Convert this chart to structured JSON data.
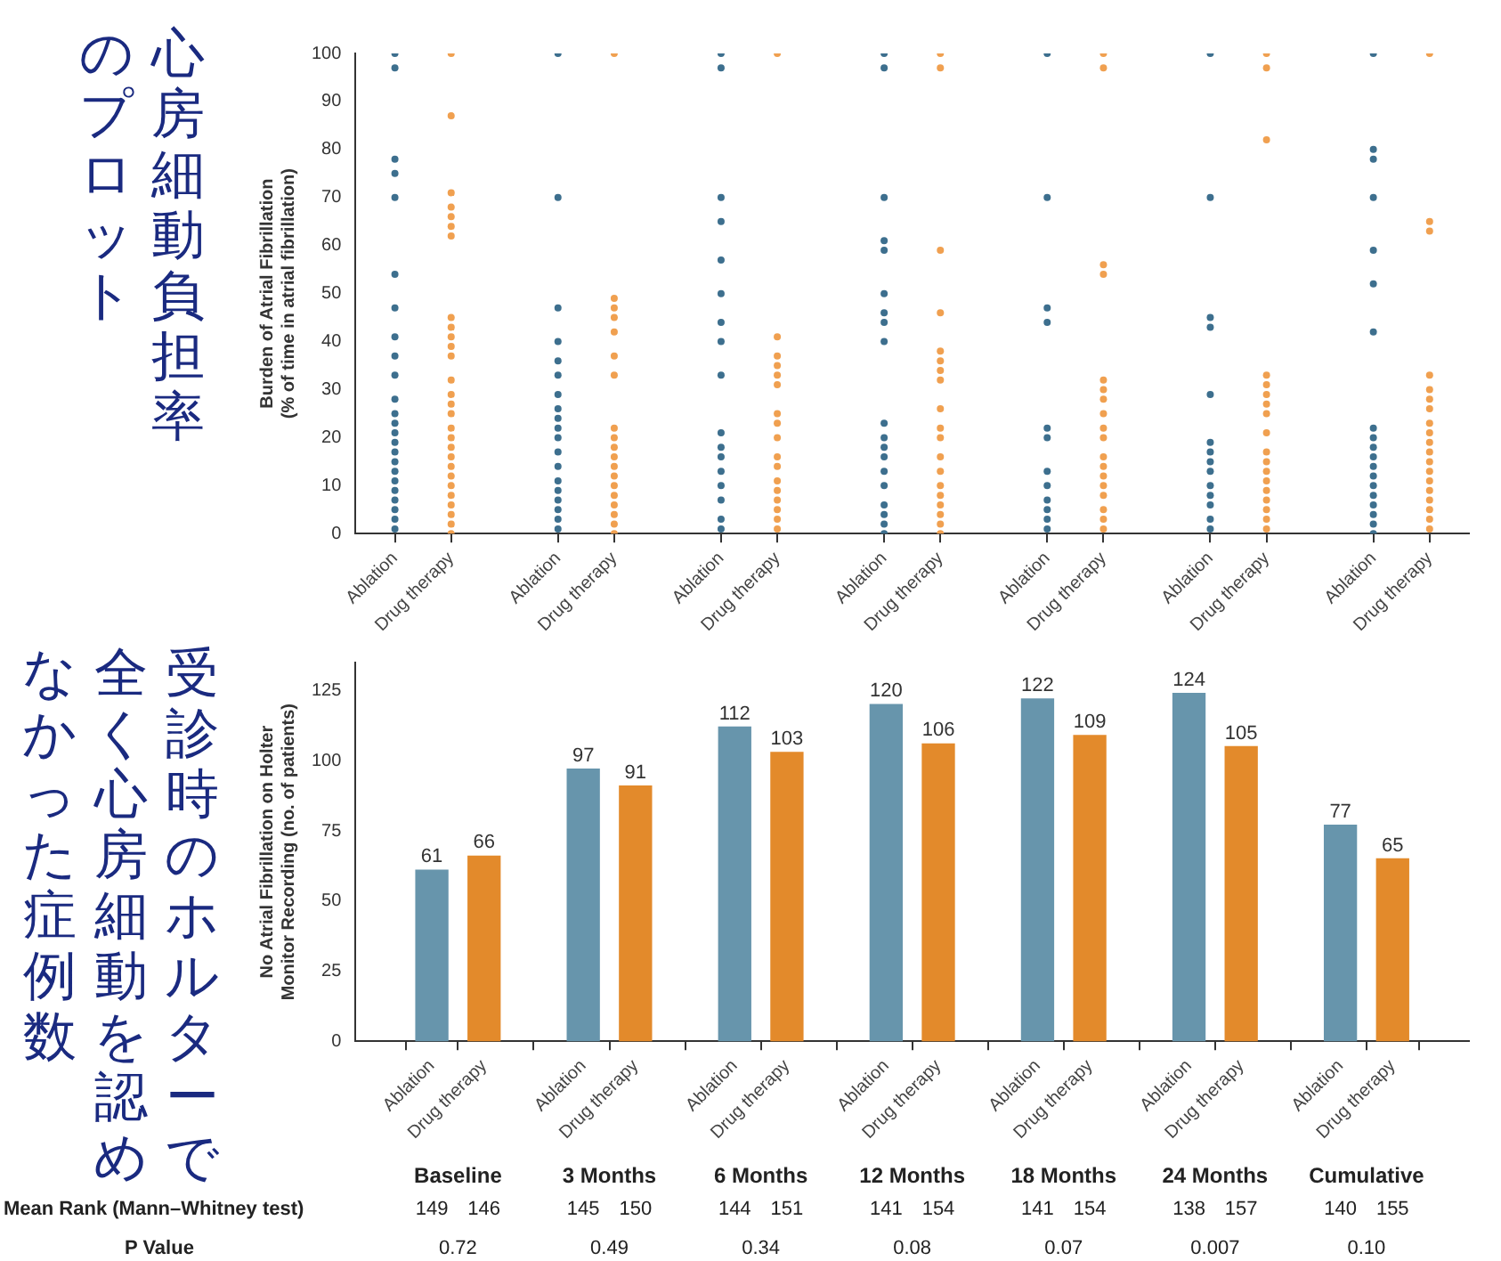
{
  "chart_data": [
    {
      "type": "scatter",
      "ylabel": "Burden of Atrial Fibrillation\n(% of time in atrial fibrillation)",
      "categories": [
        "Ablation",
        "Drug therapy",
        "Ablation",
        "Drug therapy",
        "Ablation",
        "Drug therapy",
        "Ablation",
        "Drug therapy",
        "Ablation",
        "Drug therapy",
        "Ablation",
        "Drug therapy",
        "Ablation",
        "Drug therapy"
      ],
      "series": [
        {
          "colors": [
            "#3d6f8e",
            "#f0a050",
            "#3d6f8e",
            "#f0a050",
            "#3d6f8e",
            "#f0a050",
            "#3d6f8e",
            "#f0a050",
            "#3d6f8e",
            "#f0a050",
            "#3d6f8e",
            "#f0a050",
            "#3d6f8e",
            "#f0a050"
          ],
          "values": [
            100,
            100,
            100,
            100,
            100,
            100,
            100,
            100,
            100,
            100,
            100,
            100,
            100,
            100
          ]
        },
        {
          "colors": [
            "#3d6f8e",
            "#f0a050",
            "#3d6f8e",
            "#f0a050",
            "#3d6f8e",
            "#f0a050",
            "#3d6f8e",
            "#f0a050",
            "#3d6f8e",
            "#f0a050",
            "#3d6f8e",
            "#f0a050",
            "#3d6f8e",
            "#f0a050"
          ],
          "values": [
            97,
            87,
            70,
            49,
            97,
            41,
            97,
            97,
            70,
            97,
            70,
            97,
            80,
            65
          ]
        },
        {
          "colors": [
            "#3d6f8e",
            "#f0a050",
            "#3d6f8e",
            "#f0a050",
            "#3d6f8e",
            "#f0a050",
            "#3d6f8e",
            "#f0a050",
            "#3d6f8e",
            "#f0a050",
            "#3d6f8e",
            "#f0a050",
            "#3d6f8e",
            "#f0a050"
          ],
          "values": [
            78,
            71,
            47,
            47,
            70,
            37,
            70,
            59,
            47,
            56,
            45,
            82,
            78,
            63
          ]
        },
        {
          "colors": [
            "#3d6f8e",
            "#f0a050",
            "#3d6f8e",
            "#f0a050",
            "#3d6f8e",
            "#f0a050",
            "#3d6f8e",
            "#f0a050",
            "#3d6f8e",
            "#f0a050",
            "#3d6f8e",
            "#f0a050",
            "#3d6f8e",
            "#f0a050"
          ],
          "values": [
            75,
            68,
            40,
            45,
            65,
            35,
            61,
            46,
            44,
            54,
            43,
            33,
            70,
            33
          ]
        },
        {
          "colors": [
            "#3d6f8e",
            "#f0a050",
            "#3d6f8e",
            "#f0a050",
            "#3d6f8e",
            "#f0a050",
            "#3d6f8e",
            "#f0a050",
            "#3d6f8e",
            "#f0a050",
            "#3d6f8e",
            "#f0a050",
            "#3d6f8e",
            "#f0a050"
          ],
          "values": [
            70,
            66,
            36,
            42,
            57,
            33,
            59,
            38,
            22,
            32,
            29,
            31,
            59,
            30
          ]
        },
        {
          "colors": [
            "#3d6f8e",
            "#f0a050",
            "#3d6f8e",
            "#f0a050",
            "#3d6f8e",
            "#f0a050",
            "#3d6f8e",
            "#f0a050",
            "#3d6f8e",
            "#f0a050",
            "#3d6f8e",
            "#f0a050",
            "#3d6f8e",
            "#f0a050"
          ],
          "values": [
            54,
            64,
            33,
            37,
            50,
            31,
            50,
            36,
            20,
            30,
            19,
            29,
            52,
            28
          ]
        },
        {
          "colors": [
            "#3d6f8e",
            "#f0a050",
            "#3d6f8e",
            "#f0a050",
            "#3d6f8e",
            "#f0a050",
            "#3d6f8e",
            "#f0a050",
            "#3d6f8e",
            "#f0a050",
            "#3d6f8e",
            "#f0a050",
            "#3d6f8e",
            "#f0a050"
          ],
          "values": [
            47,
            62,
            29,
            33,
            44,
            25,
            46,
            34,
            13,
            28,
            17,
            27,
            42,
            26
          ]
        },
        {
          "colors": [
            "#3d6f8e",
            "#f0a050",
            "#3d6f8e",
            "#f0a050",
            "#3d6f8e",
            "#f0a050",
            "#3d6f8e",
            "#f0a050",
            "#3d6f8e",
            "#f0a050",
            "#3d6f8e",
            "#f0a050",
            "#3d6f8e",
            "#f0a050"
          ],
          "values": [
            41,
            45,
            26,
            22,
            40,
            23,
            44,
            32,
            10,
            25,
            15,
            25,
            22,
            23
          ]
        },
        {
          "colors": [
            "#3d6f8e",
            "#f0a050",
            "#3d6f8e",
            "#f0a050",
            "#3d6f8e",
            "#f0a050",
            "#3d6f8e",
            "#f0a050",
            "#3d6f8e",
            "#f0a050",
            "#3d6f8e",
            "#f0a050",
            "#3d6f8e",
            "#f0a050"
          ],
          "values": [
            37,
            43,
            24,
            20,
            33,
            20,
            40,
            26,
            7,
            22,
            13,
            21,
            20,
            21
          ]
        },
        {
          "colors": [
            "#3d6f8e",
            "#f0a050",
            "#3d6f8e",
            "#f0a050",
            "#3d6f8e",
            "#f0a050",
            "#3d6f8e",
            "#f0a050",
            "#3d6f8e",
            "#f0a050",
            "#3d6f8e",
            "#f0a050",
            "#3d6f8e",
            "#f0a050"
          ],
          "values": [
            33,
            41,
            22,
            18,
            21,
            16,
            23,
            22,
            5,
            20,
            10,
            17,
            18,
            19
          ]
        },
        {
          "colors": [
            "#3d6f8e",
            "#f0a050",
            "#3d6f8e",
            "#f0a050",
            "#3d6f8e",
            "#f0a050",
            "#3d6f8e",
            "#f0a050",
            "#3d6f8e",
            "#f0a050",
            "#3d6f8e",
            "#f0a050",
            "#3d6f8e",
            "#f0a050"
          ],
          "values": [
            28,
            39,
            20,
            16,
            18,
            14,
            20,
            20,
            3,
            16,
            8,
            15,
            16,
            17
          ]
        },
        {
          "colors": [
            "#3d6f8e",
            "#f0a050",
            "#3d6f8e",
            "#f0a050",
            "#3d6f8e",
            "#f0a050",
            "#3d6f8e",
            "#f0a050",
            "#3d6f8e",
            "#f0a050",
            "#3d6f8e",
            "#f0a050",
            "#3d6f8e",
            "#f0a050"
          ],
          "values": [
            25,
            37,
            17,
            14,
            16,
            11,
            18,
            16,
            1,
            14,
            6,
            13,
            14,
            15
          ]
        },
        {
          "colors": [
            "#3d6f8e",
            "#f0a050",
            "#3d6f8e",
            "#f0a050",
            "#3d6f8e",
            "#f0a050",
            "#3d6f8e",
            "#f0a050",
            "#3d6f8e",
            "#f0a050",
            "#3d6f8e",
            "#f0a050",
            "#3d6f8e",
            "#f0a050"
          ],
          "values": [
            23,
            32,
            14,
            12,
            13,
            9,
            16,
            13,
            null,
            12,
            3,
            11,
            12,
            13
          ]
        },
        {
          "colors": [
            "#3d6f8e",
            "#f0a050",
            "#3d6f8e",
            "#f0a050",
            "#3d6f8e",
            "#f0a050",
            "#3d6f8e",
            "#f0a050",
            "#3d6f8e",
            "#f0a050",
            "#3d6f8e",
            "#f0a050",
            "#3d6f8e",
            "#f0a050"
          ],
          "values": [
            21,
            29,
            11,
            10,
            10,
            7,
            13,
            10,
            null,
            10,
            1,
            9,
            10,
            11
          ]
        },
        {
          "colors": [
            "#3d6f8e",
            "#f0a050",
            "#3d6f8e",
            "#f0a050",
            "#3d6f8e",
            "#f0a050",
            "#3d6f8e",
            "#f0a050",
            "#3d6f8e",
            "#f0a050",
            "#3d6f8e",
            "#f0a050",
            "#3d6f8e",
            "#f0a050"
          ],
          "values": [
            19,
            27,
            9,
            8,
            7,
            5,
            10,
            8,
            null,
            8,
            null,
            7,
            8,
            9
          ]
        },
        {
          "colors": [
            "#3d6f8e",
            "#f0a050",
            "#3d6f8e",
            "#f0a050",
            "#3d6f8e",
            "#f0a050",
            "#3d6f8e",
            "#f0a050",
            "#3d6f8e",
            "#f0a050",
            "#3d6f8e",
            "#f0a050",
            "#3d6f8e",
            "#f0a050"
          ],
          "values": [
            17,
            25,
            7,
            6,
            3,
            3,
            6,
            6,
            null,
            5,
            null,
            5,
            6,
            7
          ]
        },
        {
          "colors": [
            "#3d6f8e",
            "#f0a050",
            "#3d6f8e",
            "#f0a050",
            "#3d6f8e",
            "#f0a050",
            "#3d6f8e",
            "#f0a050",
            "#3d6f8e",
            "#f0a050",
            "#3d6f8e",
            "#f0a050",
            "#3d6f8e",
            "#f0a050"
          ],
          "values": [
            15,
            22,
            5,
            4,
            1,
            1,
            4,
            4,
            null,
            3,
            null,
            3,
            4,
            5
          ]
        },
        {
          "colors": [
            "#3d6f8e",
            "#f0a050",
            "#3d6f8e",
            "#f0a050",
            "#3d6f8e",
            "#f0a050",
            "#3d6f8e",
            "#f0a050",
            "#3d6f8e",
            "#f0a050",
            "#3d6f8e",
            "#f0a050",
            "#3d6f8e",
            "#f0a050"
          ],
          "values": [
            13,
            20,
            3,
            2,
            null,
            null,
            2,
            2,
            null,
            1,
            null,
            1,
            2,
            3
          ]
        },
        {
          "colors": [
            "#3d6f8e",
            "#f0a050",
            "#3d6f8e",
            "#f0a050",
            "#3d6f8e",
            "#f0a050",
            "#3d6f8e",
            "#f0a050",
            "#3d6f8e",
            "#f0a050",
            "#3d6f8e",
            "#f0a050",
            "#3d6f8e",
            "#f0a050"
          ],
          "values": [
            11,
            18,
            1,
            0,
            null,
            null,
            0,
            0,
            null,
            null,
            null,
            null,
            0,
            1
          ]
        },
        {
          "colors": [
            "#3d6f8e",
            "#f0a050",
            "#3d6f8e",
            "#f0a050",
            "#3d6f8e",
            "#f0a050",
            "#3d6f8e",
            "#f0a050",
            "#3d6f8e",
            "#f0a050",
            "#3d6f8e",
            "#f0a050",
            "#3d6f8e",
            "#f0a050"
          ],
          "values": [
            9,
            16,
            null,
            null,
            null,
            null,
            null,
            null,
            null,
            null,
            null,
            null,
            null,
            null
          ]
        },
        {
          "colors": [
            "#3d6f8e",
            "#f0a050",
            "#3d6f8e",
            "#f0a050",
            "#3d6f8e",
            "#f0a050",
            "#3d6f8e",
            "#f0a050",
            "#3d6f8e",
            "#f0a050",
            "#3d6f8e",
            "#f0a050",
            "#3d6f8e",
            "#f0a050"
          ],
          "values": [
            7,
            14,
            null,
            null,
            null,
            null,
            null,
            null,
            null,
            null,
            null,
            null,
            null,
            null
          ]
        },
        {
          "colors": [
            "#3d6f8e",
            "#f0a050",
            "#3d6f8e",
            "#f0a050",
            "#3d6f8e",
            "#f0a050",
            "#3d6f8e",
            "#f0a050",
            "#3d6f8e",
            "#f0a050",
            "#3d6f8e",
            "#f0a050",
            "#3d6f8e",
            "#f0a050"
          ],
          "values": [
            5,
            12,
            null,
            null,
            null,
            null,
            null,
            null,
            null,
            null,
            null,
            null,
            null,
            null
          ]
        },
        {
          "colors": [
            "#3d6f8e",
            "#f0a050",
            "#3d6f8e",
            "#f0a050",
            "#3d6f8e",
            "#f0a050",
            "#3d6f8e",
            "#f0a050",
            "#3d6f8e",
            "#f0a050",
            "#3d6f8e",
            "#f0a050",
            "#3d6f8e",
            "#f0a050"
          ],
          "values": [
            3,
            10,
            null,
            null,
            null,
            null,
            null,
            null,
            null,
            null,
            null,
            null,
            null,
            null
          ]
        },
        {
          "colors": [
            "#3d6f8e",
            "#f0a050",
            "#3d6f8e",
            "#f0a050",
            "#3d6f8e",
            "#f0a050",
            "#3d6f8e",
            "#f0a050",
            "#3d6f8e",
            "#f0a050",
            "#3d6f8e",
            "#f0a050",
            "#3d6f8e",
            "#f0a050"
          ],
          "values": [
            1,
            8,
            null,
            null,
            null,
            null,
            null,
            null,
            null,
            null,
            null,
            null,
            null,
            null
          ]
        },
        {
          "colors": [
            "#3d6f8e",
            "#f0a050",
            "#3d6f8e",
            "#f0a050",
            "#3d6f8e",
            "#f0a050",
            "#3d6f8e",
            "#f0a050",
            "#3d6f8e",
            "#f0a050",
            "#3d6f8e",
            "#f0a050",
            "#3d6f8e",
            "#f0a050"
          ],
          "values": [
            null,
            6,
            null,
            null,
            null,
            null,
            null,
            null,
            null,
            null,
            null,
            null,
            null,
            null
          ]
        },
        {
          "colors": [
            "#3d6f8e",
            "#f0a050",
            "#3d6f8e",
            "#f0a050",
            "#3d6f8e",
            "#f0a050",
            "#3d6f8e",
            "#f0a050",
            "#3d6f8e",
            "#f0a050",
            "#3d6f8e",
            "#f0a050",
            "#3d6f8e",
            "#f0a050"
          ],
          "values": [
            null,
            4,
            null,
            null,
            null,
            null,
            null,
            null,
            null,
            null,
            null,
            null,
            null,
            null
          ]
        },
        {
          "colors": [
            "#3d6f8e",
            "#f0a050",
            "#3d6f8e",
            "#f0a050",
            "#3d6f8e",
            "#f0a050",
            "#3d6f8e",
            "#f0a050",
            "#3d6f8e",
            "#f0a050",
            "#3d6f8e",
            "#f0a050",
            "#3d6f8e",
            "#f0a050"
          ],
          "values": [
            null,
            2,
            null,
            null,
            null,
            null,
            null,
            null,
            null,
            null,
            null,
            null,
            null,
            null
          ]
        },
        {
          "colors": [
            "#3d6f8e",
            "#f0a050",
            "#3d6f8e",
            "#f0a050",
            "#3d6f8e",
            "#f0a050",
            "#3d6f8e",
            "#f0a050",
            "#3d6f8e",
            "#f0a050",
            "#3d6f8e",
            "#f0a050",
            "#3d6f8e",
            "#f0a050"
          ],
          "values": [
            null,
            0,
            null,
            null,
            null,
            null,
            null,
            null,
            null,
            null,
            null,
            null,
            null,
            null
          ]
        }
      ],
      "ylim": [
        0,
        100
      ],
      "yticks": [
        0,
        10,
        20,
        30,
        40,
        50,
        60,
        70,
        80,
        90,
        100
      ],
      "grid": false,
      "legend": false,
      "marker": "circle",
      "annotations": [
        "心房細動負担率のプロット"
      ]
    },
    {
      "type": "bar",
      "ylabel": "No Atrial Fibrillation on Holter\nMonitor Recording (no. of patients)",
      "categories": [
        "Ablation",
        "Drug therapy",
        "Ablation",
        "Drug therapy",
        "Ablation",
        "Drug therapy",
        "Ablation",
        "Drug therapy",
        "Ablation",
        "Drug therapy",
        "Ablation",
        "Drug therapy",
        "Ablation",
        "Drug therapy"
      ],
      "values": [
        61,
        66,
        97,
        91,
        112,
        103,
        120,
        106,
        122,
        109,
        124,
        105,
        77,
        65
      ],
      "colors": [
        "#6795ac",
        "#e38a2b",
        "#6795ac",
        "#e38a2b",
        "#6795ac",
        "#e38a2b",
        "#6795ac",
        "#e38a2b",
        "#6795ac",
        "#e38a2b",
        "#6795ac",
        "#e38a2b",
        "#6795ac",
        "#e38a2b"
      ],
      "ylim": [
        0,
        135
      ],
      "yticks": [
        0,
        25,
        50,
        75,
        100,
        125
      ],
      "grid": false,
      "legend": false,
      "data_labels": true,
      "annotations": [
        "受診時のホルターで全く心房細動を認めなかった症例数",
        "Baseline",
        "3 Months",
        "6 Months",
        "12 Months",
        "18 Months",
        "24 Months",
        "Cumulative",
        "Mean Rank (Mann–Whitney test)",
        "149",
        "146",
        "145",
        "150",
        "144",
        "151",
        "141",
        "154",
        "141",
        "154",
        "138",
        "157",
        "140",
        "155",
        "P Value",
        "0.72",
        "0.49",
        "0.34",
        "0.08",
        "0.07",
        "0.007",
        "0.10"
      ]
    }
  ]
}
